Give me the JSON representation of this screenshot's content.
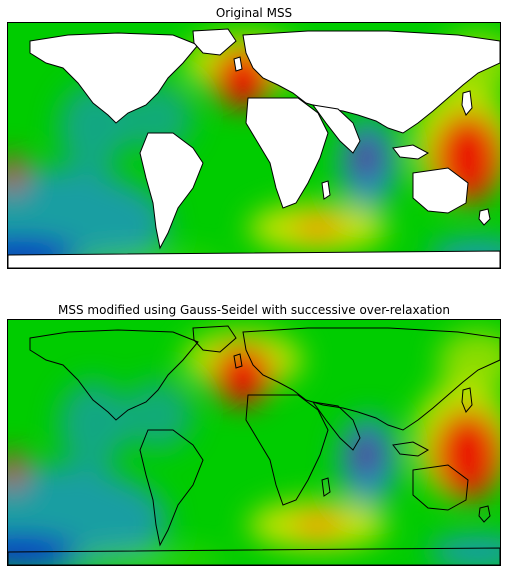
{
  "figure": {
    "panels": [
      {
        "id": "original",
        "title": "Original MSS",
        "land_masked": true
      },
      {
        "id": "modified",
        "title": "MSS modified using Gauss-Seidel with successive over-relaxation",
        "land_masked": false
      }
    ],
    "colormap": "nipy_spectral",
    "colors": {
      "land": "#ffffff",
      "coastline": "#000000",
      "field_low_green": "#00cc00",
      "field_high_red": "#ee0000",
      "field_min_purple": "#5a0a8a",
      "field_blue": "#1f8fd8",
      "field_yellow": "#e8e800"
    }
  }
}
